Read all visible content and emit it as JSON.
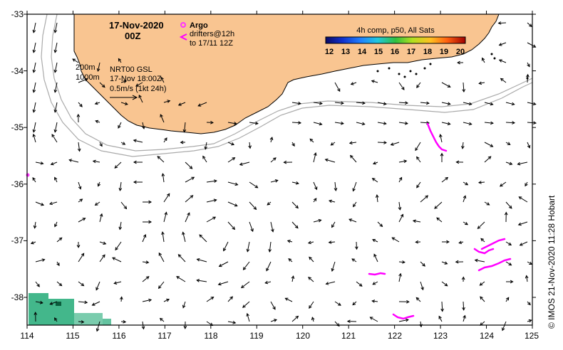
{
  "title": {
    "date": "17-Nov-2020",
    "time": "00Z"
  },
  "legend": {
    "argo_label": "Argo",
    "drifters_label": "drifters@12h",
    "drifters_range": "to 17/11 12Z",
    "argo_color": "#ff33ff",
    "drifter_color": "#ff00ff"
  },
  "colorbar": {
    "title": "4h comp, p50, All Sats",
    "ticks": [
      "12",
      "13",
      "14",
      "15",
      "16",
      "17",
      "18",
      "19",
      "20"
    ]
  },
  "isobaths": {
    "label_200": "200m",
    "label_1000": "1000m"
  },
  "current_info": {
    "product": "NRT00 GSL",
    "valid_time": "17-Nov 18:00Z",
    "scale_label": "0.5m/s (1kt 24h)"
  },
  "credit": "© IMOS 21-Nov-2020 11:28 Hobart",
  "axes": {
    "x_ticks": [
      "114",
      "115",
      "116",
      "117",
      "118",
      "119",
      "120",
      "121",
      "122",
      "123",
      "124",
      "125"
    ],
    "y_ticks": [
      "-33",
      "-34",
      "-35",
      "-36",
      "-37",
      "-38"
    ]
  },
  "colors": {
    "land": "#f9c591",
    "coast": "#000000",
    "isobath": "#aaaaaa",
    "frame": "#000000",
    "sst_patch": "#22aa77"
  }
}
